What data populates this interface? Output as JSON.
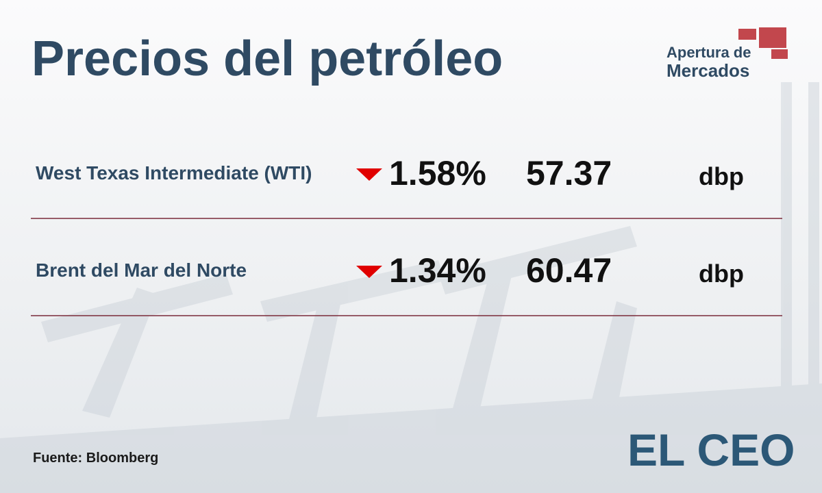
{
  "header": {
    "title": "Precios del petróleo",
    "badge": [
      "Apertura de",
      "Mercados"
    ]
  },
  "table": {
    "rows": [
      [
        "West Texas Intermediate (WTI)",
        "1.58%",
        "57.37",
        "dbp"
      ],
      [
        "Brent del Mar del Norte",
        "1.34%",
        "60.47",
        "dbp"
      ]
    ]
  },
  "footer": {
    "source": "Fuente: Bloomberg",
    "logo": "EL CEO"
  }
}
